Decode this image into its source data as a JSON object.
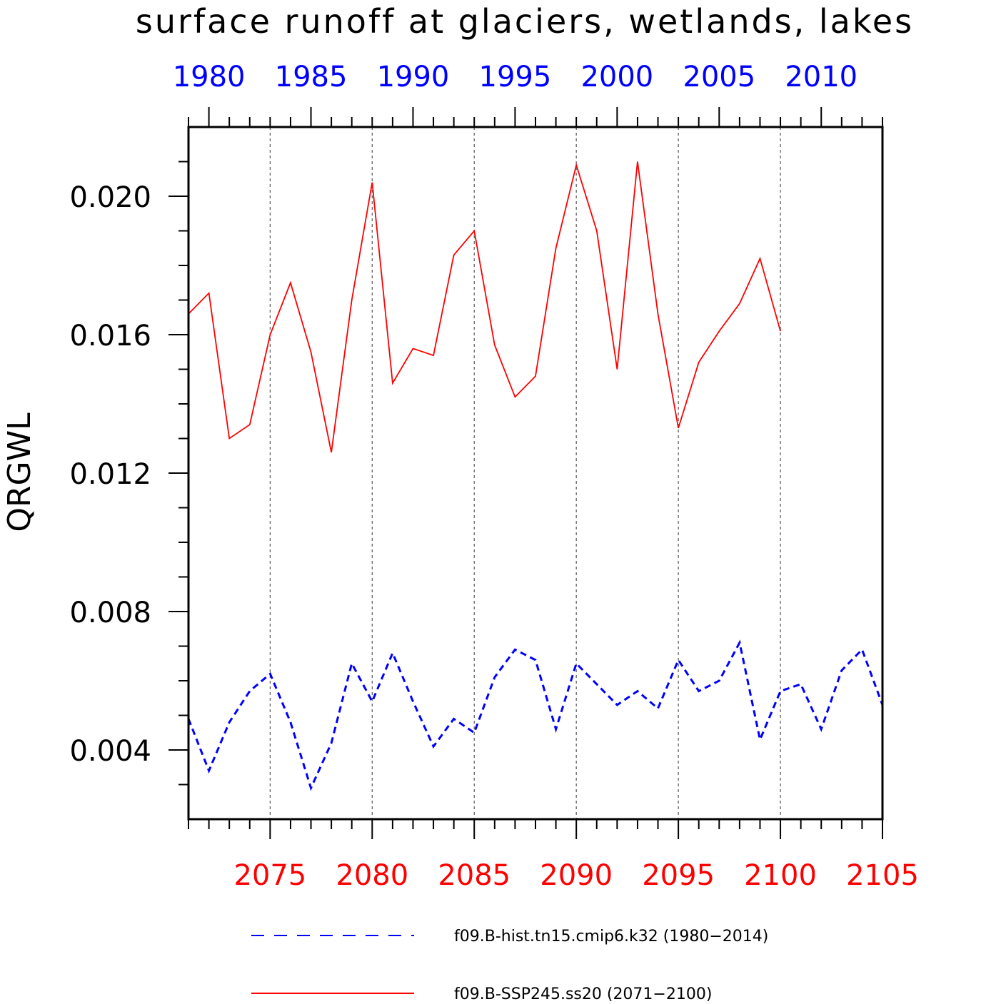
{
  "chart_data": {
    "type": "line",
    "title": "surface runoff at glaciers, wetlands, lakes",
    "ylabel": "QRGWL",
    "ylim": [
      0.002,
      0.022
    ],
    "yticks": [
      "0.004",
      "0.008",
      "0.012",
      "0.016",
      "0.020"
    ],
    "ytick_values": [
      0.004,
      0.008,
      0.012,
      0.016,
      0.02
    ],
    "y_minor_step": 0.001,
    "grid": "vertical dashed",
    "top_axis": {
      "color": "#0000ff",
      "range": [
        1979,
        2013
      ],
      "ticks": [
        "1980",
        "1985",
        "1990",
        "1995",
        "2000",
        "2005",
        "2010"
      ],
      "tick_values": [
        1980,
        1985,
        1990,
        1995,
        2000,
        2005,
        2010
      ]
    },
    "bottom_axis": {
      "color": "#ff0000",
      "range": [
        2071,
        2105
      ],
      "ticks": [
        "2075",
        "2080",
        "2085",
        "2090",
        "2095",
        "2100",
        "2105"
      ],
      "tick_values": [
        2075,
        2080,
        2085,
        2090,
        2095,
        2100,
        2105
      ]
    },
    "series": [
      {
        "name": "f09.B-hist.tn15.cmip6.k32 (1980−2014)",
        "color": "#0000ff",
        "style": "dashed",
        "axis": "top",
        "x": [
          1979,
          1980,
          1981,
          1982,
          1983,
          1984,
          1985,
          1986,
          1987,
          1988,
          1989,
          1990,
          1991,
          1992,
          1993,
          1994,
          1995,
          1996,
          1997,
          1998,
          1999,
          2000,
          2001,
          2002,
          2003,
          2004,
          2005,
          2006,
          2007,
          2008,
          2009,
          2010,
          2011,
          2012,
          2013
        ],
        "values": [
          0.0049,
          0.0034,
          0.0048,
          0.0057,
          0.0062,
          0.0048,
          0.0029,
          0.0042,
          0.0065,
          0.0054,
          0.0068,
          0.0054,
          0.0041,
          0.0049,
          0.0045,
          0.0061,
          0.0069,
          0.0066,
          0.0046,
          0.0065,
          0.0059,
          0.0053,
          0.0057,
          0.0052,
          0.0066,
          0.0057,
          0.006,
          0.0071,
          0.0043,
          0.0057,
          0.0059,
          0.0046,
          0.0063,
          0.0069,
          0.0053
        ]
      },
      {
        "name": "f09.B-SSP245.ss20 (2071−2100)",
        "color": "#ff0000",
        "style": "solid",
        "axis": "bottom",
        "x": [
          2071,
          2072,
          2073,
          2074,
          2075,
          2076,
          2077,
          2078,
          2079,
          2080,
          2081,
          2082,
          2083,
          2084,
          2085,
          2086,
          2087,
          2088,
          2089,
          2090,
          2091,
          2092,
          2093,
          2094,
          2095,
          2096,
          2097,
          2098,
          2099,
          2100
        ],
        "values": [
          0.0166,
          0.0172,
          0.013,
          0.0134,
          0.016,
          0.0175,
          0.0155,
          0.0126,
          0.017,
          0.0204,
          0.0146,
          0.0156,
          0.0154,
          0.0183,
          0.019,
          0.0157,
          0.0142,
          0.0148,
          0.0185,
          0.0209,
          0.019,
          0.015,
          0.021,
          0.0166,
          0.0133,
          0.0152,
          0.0161,
          0.0169,
          0.0182,
          0.0161
        ]
      }
    ],
    "legend_position": "bottom"
  }
}
